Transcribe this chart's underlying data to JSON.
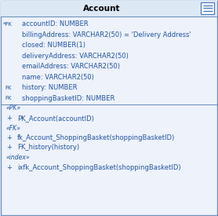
{
  "title": "Account",
  "title_bg": "#dde8f5",
  "body_bg": "#eef2fb",
  "border_color": "#7092be",
  "title_font_size": 7.5,
  "text_font_size": 6.0,
  "attributes": [
    {
      "prefix": "*PK",
      "text": "accountID: NUMBER"
    },
    {
      "prefix": "",
      "text": "billingAddress: VARCHAR2(50) = 'Delivery Address'"
    },
    {
      "prefix": "",
      "text": "closed: NUMBER(1)"
    },
    {
      "prefix": "",
      "text": "deliveryAddress: VARCHAR2(50)"
    },
    {
      "prefix": "",
      "text": "emailAddress: VARCHAR2(50)"
    },
    {
      "prefix": "",
      "text": "name: VARCHAR2(50)"
    },
    {
      "prefix": "FK",
      "text": "history: NUMBER"
    },
    {
      "prefix": "FK",
      "text": "shoppingBasketID: NUMBER"
    }
  ],
  "sections": [
    {
      "stereotype": "«PK»",
      "items": [
        "PK_Account(accountID)"
      ]
    },
    {
      "stereotype": "«FK»",
      "items": [
        "fk_Account_ShoppingBasket(shoppingBasketID)",
        "FK_history(history)"
      ]
    },
    {
      "stereotype": "«index»",
      "items": [
        "ixfk_Account_ShoppingBasket(shoppingBasketID)"
      ]
    }
  ],
  "icon_color": "#4472c4",
  "text_color": "#2255a0",
  "prefix_color": "#2255a0",
  "stereotype_color": "#2255a0"
}
